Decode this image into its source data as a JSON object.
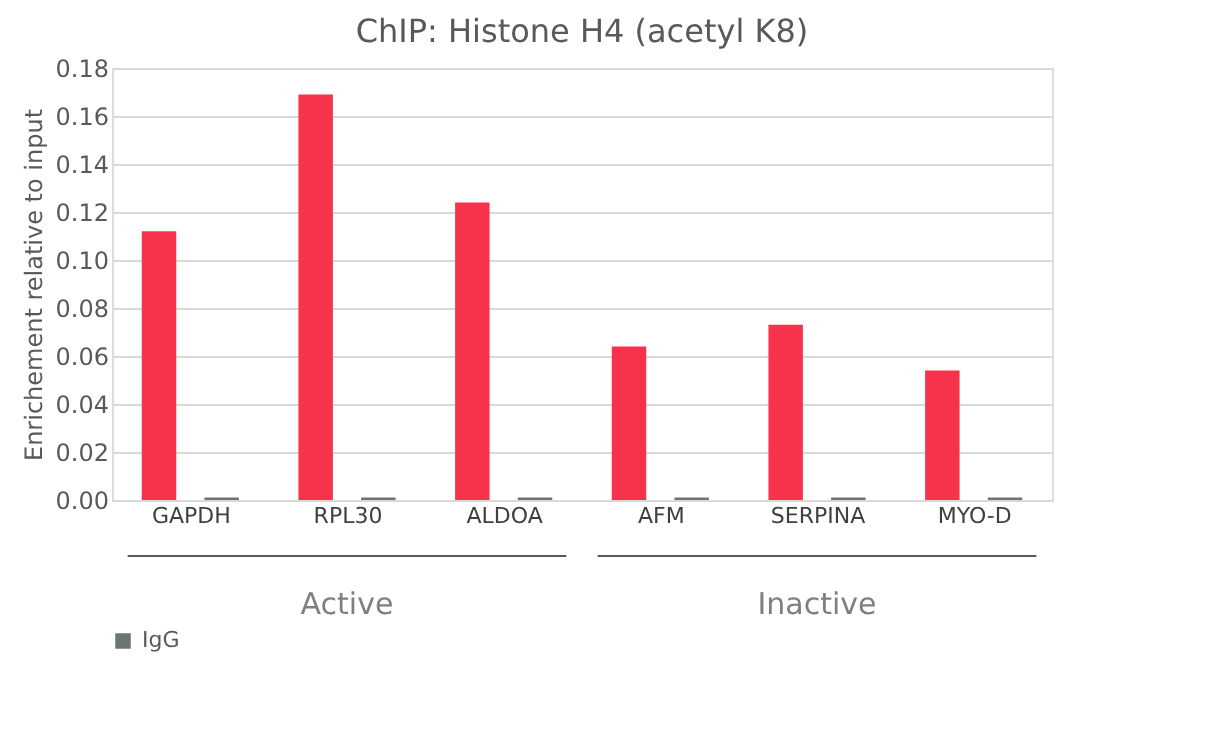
{
  "chart_data": {
    "type": "bar",
    "title": "ChIP: Histone H4 (acetyl K8)",
    "ylabel": "Enrichement relative to input",
    "categories": [
      "GAPDH",
      "RPL30",
      "ALDOA",
      "AFM",
      "SERPINA",
      "MYO-D"
    ],
    "series": [
      {
        "color": "#f7334b",
        "values": [
          0.112,
          0.169,
          0.124,
          0.064,
          0.073,
          0.054
        ]
      },
      {
        "name": "IgG",
        "color": "#6d7474",
        "values": [
          0.001,
          0.001,
          0.001,
          0.001,
          0.001,
          0.001
        ]
      }
    ],
    "ylim": [
      0,
      0.18
    ],
    "yticks": [
      {
        "value": 0,
        "label": "0.00"
      },
      0.02,
      0.04,
      0.06,
      0.08,
      {
        "value": 0.1,
        "label": "0.10"
      },
      0.12,
      0.14,
      0.16,
      0.18
    ],
    "grid": "y",
    "legend": "bottom",
    "annotations": [
      "Active",
      "Inactive"
    ]
  }
}
